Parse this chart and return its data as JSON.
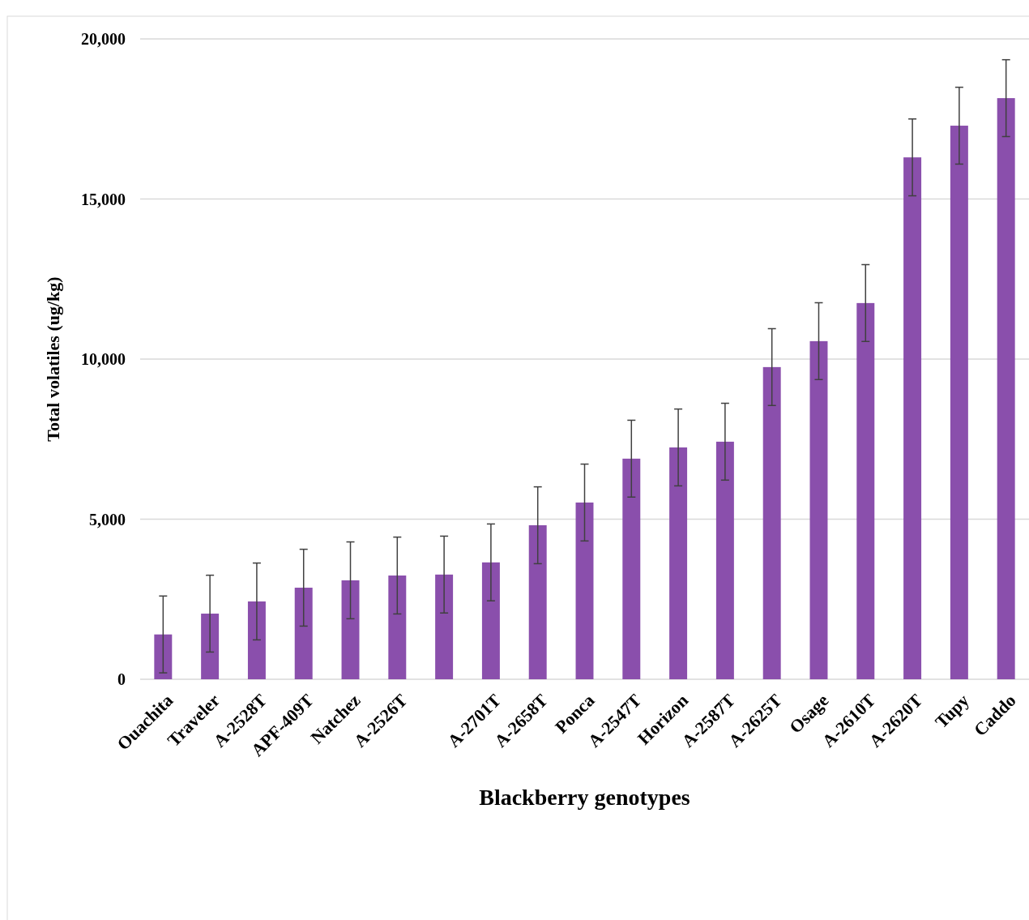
{
  "chart_data": {
    "type": "bar",
    "xlabel": "Blackberry genotypes",
    "ylabel": "Total volatiles (ug/kg)",
    "categories": [
      "Ouachita",
      "Traveler",
      "A-2528T",
      "APF-409T",
      "Natchez",
      "A-2526T",
      null,
      "A-2701T",
      "A-2658T",
      "Ponca",
      "A-2547T",
      "Horizon",
      "A-2587T",
      "A-2625T",
      "Osage",
      "A-2610T",
      "A-2620T",
      "Tupy",
      "Caddo"
    ],
    "values": [
      1400,
      2050,
      2430,
      2860,
      3090,
      3240,
      3270,
      3650,
      4810,
      5520,
      6890,
      7240,
      7420,
      9750,
      10560,
      11750,
      16300,
      17290,
      18150
    ],
    "errors": [
      1200,
      1200,
      1200,
      1200,
      1200,
      1200,
      1200,
      1200,
      1200,
      1200,
      1200,
      1200,
      1200,
      1200,
      1200,
      1200,
      1200,
      1200,
      1200
    ],
    "color": "#8a4fac",
    "ylim": [
      0,
      20000
    ],
    "yticks": [
      {
        "value": 0,
        "label": "0"
      },
      {
        "value": 5000,
        "label": "5,000"
      },
      {
        "value": 10000,
        "label": "10,000"
      },
      {
        "value": 15000,
        "label": "15,000"
      },
      {
        "value": 20000,
        "label": "20,000"
      }
    ],
    "grid": "y"
  }
}
